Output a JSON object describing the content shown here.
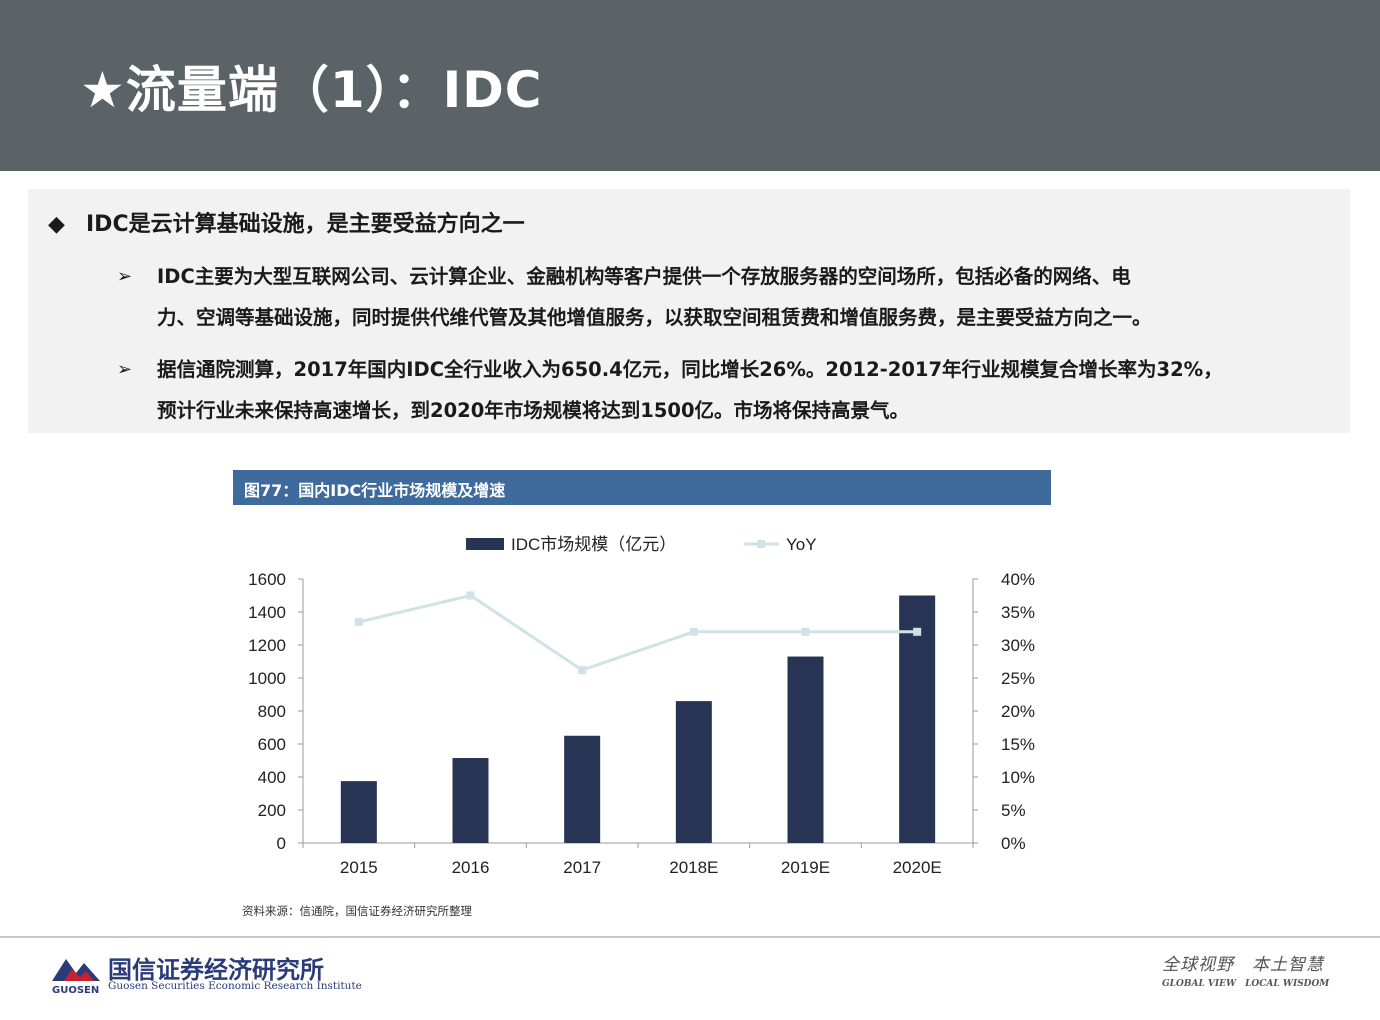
{
  "header": {
    "title": "★流量端（1）：IDC"
  },
  "bullets": {
    "main_marker": "◆",
    "main": "IDC是云计算基础设施，是主要受益方向之一",
    "sub_marker": "➢",
    "sub": [
      {
        "line1": "IDC主要为大型互联网公司、云计算企业、金融机构等客户提供一个存放服务器的空间场所，包括必备的网络、电",
        "line2": "力、空调等基础设施，同时提供代维代管及其他增值服务，以获取空间租赁费和增值服务费，是主要受益方向之一。"
      },
      {
        "line1": "据信通院测算，2017年国内IDC全行业收入为650.4亿元，同比增长26%。2012-2017年行业规模复合增长率为32%，",
        "line2": "预计行业未来保持高速增长，到2020年市场规模将达到1500亿。市场将保持高景气。"
      }
    ]
  },
  "figure": {
    "title": "图77：国内IDC行业市场规模及增速",
    "source": "资料来源：信通院，国信证券经济研究所整理"
  },
  "chart_data": {
    "type": "bar",
    "categories": [
      "2015",
      "2016",
      "2017",
      "2018E",
      "2019E",
      "2020E"
    ],
    "series": [
      {
        "name": "IDC市场规模（亿元）",
        "type": "bar",
        "axis": "left",
        "values": [
          375,
          515,
          650,
          860,
          1130,
          1500
        ],
        "color": "#283454"
      },
      {
        "name": "YoY",
        "type": "line",
        "axis": "right",
        "values": [
          0.335,
          0.375,
          0.262,
          0.32,
          0.32,
          0.32
        ],
        "color": "#cfe3e7"
      }
    ],
    "ylim_left": [
      0,
      1600
    ],
    "yticks_left": [
      "0",
      "200",
      "400",
      "600",
      "800",
      "1000",
      "1200",
      "1400",
      "1600"
    ],
    "ylim_right": [
      0,
      0.4
    ],
    "yticks_right": [
      "0%",
      "5%",
      "10%",
      "15%",
      "20%",
      "25%",
      "30%",
      "35%",
      "40%"
    ],
    "legend_position": "top-center",
    "grid": false
  },
  "footer": {
    "logo_word": "GUOSEN",
    "company_cn": "国信证券经济研究所",
    "company_en": "Guosen Securities Economic Research Institute",
    "slogan_cn": "全球视野　本土智慧",
    "slogan_en": "GLOBAL VIEW　LOCAL WISDOM"
  }
}
